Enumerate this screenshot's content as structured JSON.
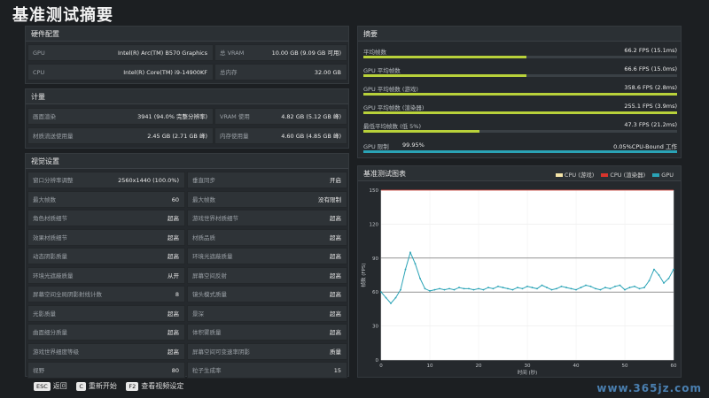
{
  "page": {
    "title": "基准测试摘要"
  },
  "hardware": {
    "header": "硬件配置",
    "rows": [
      {
        "label": "GPU",
        "value": "Intel(R) Arc(TM) B570 Graphics",
        "label2": "总 VRAM",
        "value2": "10.00 GB (9.09 GB 可用)"
      },
      {
        "label": "CPU",
        "value": "Intel(R) Core(TM) i9-14900KF",
        "label2": "总内存",
        "value2": "32.00 GB"
      }
    ]
  },
  "calc": {
    "header": "计量",
    "rows": [
      {
        "label": "画面渲染",
        "value": "3941 (94.0% 完整分辨率)",
        "label2": "VRAM 使用",
        "value2": "4.82 GB (5.12 GB 峰)"
      },
      {
        "label": "材质流送使用量",
        "value": "2.45 GB (2.71 GB 峰)",
        "label2": "内存使用量",
        "value2": "4.60 GB (4.85 GB 峰)"
      }
    ]
  },
  "video": {
    "header": "视觉设置",
    "rows": [
      {
        "label": "窗口分辨率调整",
        "value": "2560x1440 (100.0%)",
        "label2": "垂直同步",
        "value2": "开启"
      },
      {
        "label": "最大帧数",
        "value": "60",
        "label2": "最大帧数",
        "value2": "没有限制"
      },
      {
        "label": "角色材质细节",
        "value": "超高",
        "label2": "游戏世界材质细节",
        "value2": "超高"
      },
      {
        "label": "效果材质细节",
        "value": "超高",
        "label2": "材质品质",
        "value2": "超高"
      },
      {
        "label": "动态阴影质量",
        "value": "超高",
        "label2": "环境光遮蔽质量",
        "value2": "超高"
      },
      {
        "label": "环境光遮蔽质量",
        "value": "从开",
        "label2": "屏幕空间反射",
        "value2": "超高"
      },
      {
        "label": "屏幕空间全局阴影射线计数",
        "value": "8",
        "label2": "镜头模式质量",
        "value2": "超高"
      },
      {
        "label": "光影质量",
        "value": "超高",
        "label2": "景深",
        "value2": "超高"
      },
      {
        "label": "曲面细分质量",
        "value": "超高",
        "label2": "体积雾质量",
        "value2": "超高"
      },
      {
        "label": "游戏世界细度等级",
        "value": "超高",
        "label2": "屏幕空间可变速率阴影",
        "value2": "质量"
      },
      {
        "label": "视野",
        "value": "80",
        "label2": "粒子生成率",
        "value2": "15"
      }
    ]
  },
  "summary": {
    "header": "摘要",
    "rows": [
      {
        "label": "平均帧数",
        "value": "66.2 FPS (15.1ms)",
        "fill": 0.52
      },
      {
        "label": "GPU 平均帧数",
        "value": "66.6 FPS (15.0ms)",
        "fill": 0.52
      },
      {
        "label": "GPU 平均帧数 (游戏)",
        "value": "358.6 FPS (2.8ms)",
        "fill": 1.0
      },
      {
        "label": "GPU 平均帧数 (渲染器)",
        "value": "255.1 FPS (3.9ms)",
        "fill": 1.0
      },
      {
        "label": "最低平均帧数 (低 5%)",
        "value": "47.3 FPS (21.2ms)",
        "fill": 0.37
      }
    ],
    "gpu_bound": {
      "label": "GPU 限制",
      "left": "99.95%",
      "right": "0.05%CPU-Bound 工作"
    }
  },
  "chart_panel": {
    "header": "基准测试图表",
    "legend": [
      {
        "name": "CPU (游戏)",
        "color": "#f4e4a8"
      },
      {
        "name": "CPU (渲染器)",
        "color": "#d8342c"
      },
      {
        "name": "GPU",
        "color": "#2aa3b6"
      }
    ]
  },
  "chart_data": {
    "type": "line",
    "xlabel": "时间 (秒)",
    "ylabel": "帧数 (FPS)",
    "xlim": [
      0,
      60
    ],
    "ylim": [
      0,
      150
    ],
    "xticks": [
      0,
      10,
      20,
      30,
      40,
      50,
      60
    ],
    "yticks": [
      0,
      30,
      60,
      90,
      120,
      150
    ],
    "series": [
      {
        "name": "GPU",
        "color": "#2aa3b6",
        "x": [
          0,
          1,
          2,
          3,
          4,
          5,
          6,
          7,
          8,
          9,
          10,
          11,
          12,
          13,
          14,
          15,
          16,
          17,
          18,
          19,
          20,
          21,
          22,
          23,
          24,
          25,
          26,
          27,
          28,
          29,
          30,
          31,
          32,
          33,
          34,
          35,
          36,
          37,
          38,
          39,
          40,
          41,
          42,
          43,
          44,
          45,
          46,
          47,
          48,
          49,
          50,
          51,
          52,
          53,
          54,
          55,
          56,
          57,
          58,
          59,
          60
        ],
        "values": [
          60,
          55,
          50,
          55,
          62,
          80,
          95,
          85,
          72,
          63,
          61,
          62,
          63,
          62,
          63,
          62,
          64,
          63,
          63,
          62,
          63,
          62,
          64,
          63,
          65,
          64,
          63,
          62,
          64,
          63,
          65,
          64,
          63,
          66,
          64,
          62,
          63,
          65,
          64,
          63,
          62,
          64,
          66,
          65,
          63,
          62,
          64,
          63,
          65,
          66,
          62,
          64,
          65,
          63,
          64,
          70,
          80,
          75,
          68,
          72,
          80
        ]
      },
      {
        "name": "CPU (渲染器)",
        "color": "#d8342c",
        "x": [
          0,
          60
        ],
        "values": [
          150,
          150
        ]
      }
    ],
    "hlines": [
      60,
      90
    ]
  },
  "bottom": {
    "items": [
      {
        "key": "ESC",
        "label": "返回"
      },
      {
        "key": "C",
        "label": "重新开始"
      },
      {
        "key": "F2",
        "label": "查看视频设定"
      }
    ]
  },
  "watermark": "www.365jz.com"
}
